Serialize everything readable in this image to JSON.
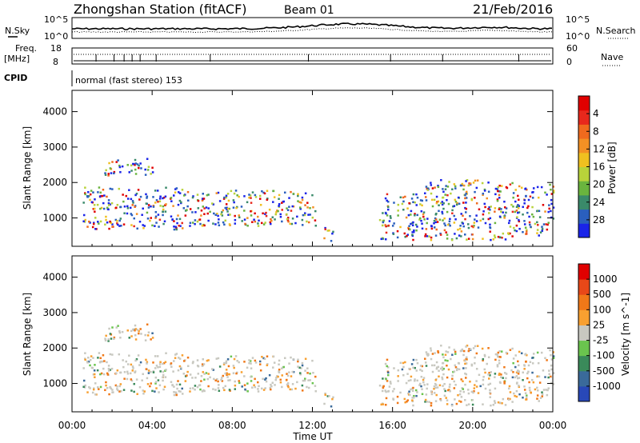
{
  "header": {
    "station_title": "Zhongshan Station (fitACF)",
    "beam_label": "Beam 01",
    "date_label": "21/Feb/2016"
  },
  "panel_labels": {
    "nsky": "N.Sky",
    "nsearch": "N.Search",
    "freq_line1": "Freq.",
    "freq_line2": "[MHz]",
    "nave": "Nave",
    "cpid": "CPID",
    "mode": "normal (fast stereo) 153"
  },
  "noise_axis": {
    "top": "10^5",
    "bottom": "10^0"
  },
  "freq_axis": {
    "left_top": "18",
    "left_bottom": "8",
    "right_top": "60",
    "right_bottom": "0"
  },
  "chart_data": [
    {
      "type": "heatmap",
      "name": "power",
      "ylabel": "Slant Range [km]",
      "yticks": [
        1000,
        2000,
        3000,
        4000
      ],
      "ylim": [
        200,
        4600
      ],
      "colorbar_label": "Power [dB]",
      "colorbar_ticks": [
        "4",
        "8",
        "12",
        "16",
        "20",
        "24",
        "28"
      ],
      "colorbar_colors": [
        "#1a24e8",
        "#2a5fbe",
        "#3a8a6a",
        "#6ab43e",
        "#b8d23a",
        "#f0c020",
        "#f39024",
        "#f06a1e",
        "#e8281c",
        "#e00000"
      ],
      "xlim_hours": [
        0,
        24
      ]
    },
    {
      "type": "heatmap",
      "name": "velocity",
      "ylabel": "Slant Range [km]",
      "yticks": [
        1000,
        2000,
        3000,
        4000
      ],
      "ylim": [
        200,
        4600
      ],
      "colorbar_label": "Velocity [m s^-1]",
      "colorbar_ticks": [
        "1000",
        "500",
        "100",
        "25",
        "-25",
        "-100",
        "-500",
        "-1000"
      ],
      "colorbar_colors": [
        "#2848b8",
        "#3a6a9a",
        "#3a8a5a",
        "#6ac44e",
        "#c8c8c0",
        "#f8a030",
        "#f07818",
        "#e84818",
        "#e00000"
      ],
      "xlim_hours": [
        0,
        24
      ]
    }
  ],
  "time_axis": {
    "ticks": [
      "00:00",
      "04:00",
      "08:00",
      "12:00",
      "16:00",
      "20:00",
      "00:00"
    ],
    "label": "Time UT"
  }
}
